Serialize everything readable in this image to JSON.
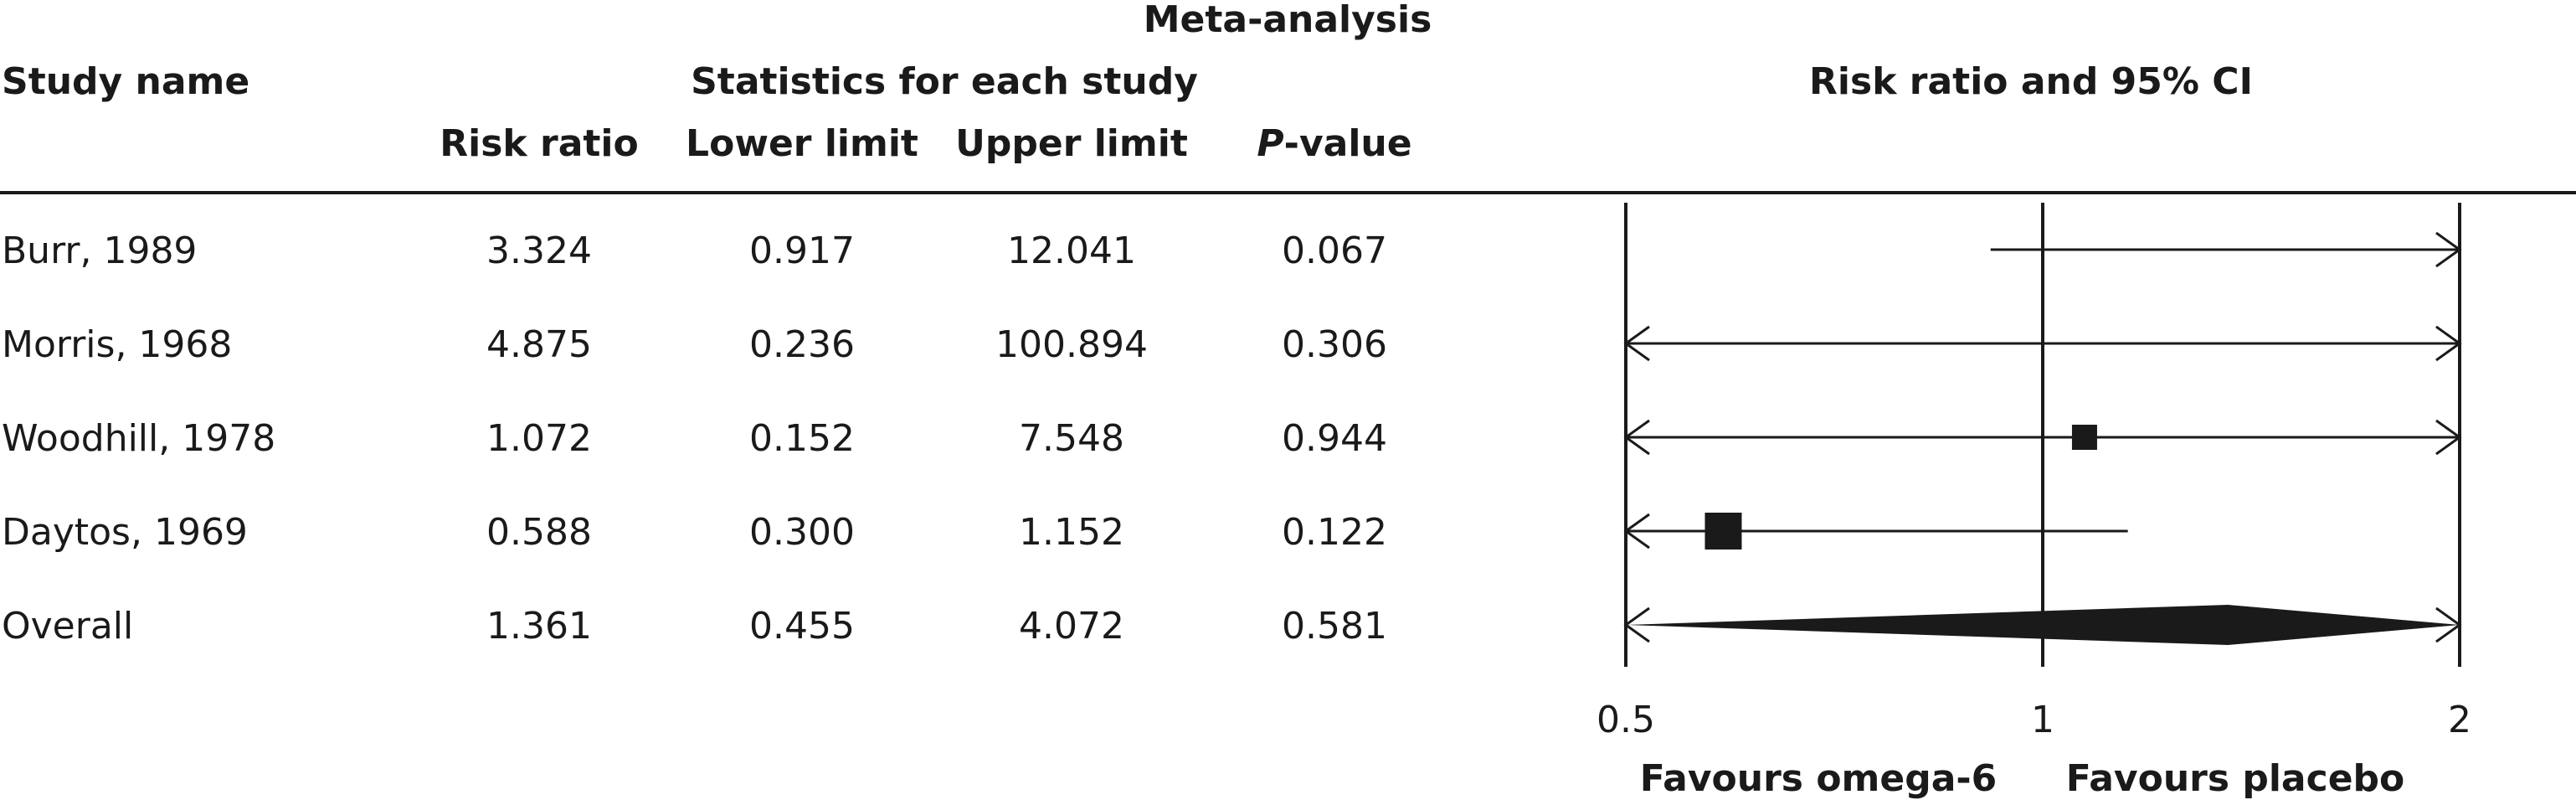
{
  "header": {
    "title": "Meta-analysis",
    "study_col": "Study name",
    "stats_group": "Statistics for each study",
    "plot_header": "Risk ratio and 95% CI",
    "cols": {
      "risk_ratio": "Risk ratio",
      "lower": "Lower limit",
      "upper": "Upper limit",
      "p_italic": "P",
      "p_rest": "-value"
    }
  },
  "rows": [
    {
      "study": "Burr, 1989",
      "rr": "3.324",
      "lower": "0.917",
      "upper": "12.041",
      "p": "0.067"
    },
    {
      "study": "Morris, 1968",
      "rr": "4.875",
      "lower": "0.236",
      "upper": "100.894",
      "p": "0.306"
    },
    {
      "study": "Woodhill, 1978",
      "rr": "1.072",
      "lower": "0.152",
      "upper": "7.548",
      "p": "0.944"
    },
    {
      "study": "Daytos, 1969",
      "rr": "0.588",
      "lower": "0.300",
      "upper": "1.152",
      "p": "0.122"
    },
    {
      "study": "Overall",
      "rr": "1.361",
      "lower": "0.455",
      "upper": "4.072",
      "p": "0.581"
    }
  ],
  "axis": {
    "ticks": [
      "0.5",
      "1",
      "2"
    ],
    "favours_left": "Favours omega-6",
    "favours_right": "Favours placebo"
  },
  "chart_data": {
    "type": "forest",
    "title": "Meta-analysis",
    "xlabel": "Risk ratio and 95% CI",
    "x_scale": "log",
    "xlim": [
      0.5,
      2
    ],
    "reference_line": 1,
    "studies": [
      {
        "name": "Burr, 1989",
        "risk_ratio": 3.324,
        "lower": 0.917,
        "upper": 12.041,
        "p": 0.067,
        "weight": 0
      },
      {
        "name": "Morris, 1968",
        "risk_ratio": 4.875,
        "lower": 0.236,
        "upper": 100.894,
        "p": 0.306,
        "weight": 0
      },
      {
        "name": "Woodhill, 1978",
        "risk_ratio": 1.072,
        "lower": 0.152,
        "upper": 7.548,
        "p": 0.944,
        "weight": 1
      },
      {
        "name": "Daytos, 1969",
        "risk_ratio": 0.588,
        "lower": 0.3,
        "upper": 1.152,
        "p": 0.122,
        "weight": 2
      },
      {
        "name": "Overall",
        "risk_ratio": 1.361,
        "lower": 0.455,
        "upper": 4.072,
        "p": 0.581,
        "summary": true
      }
    ]
  }
}
